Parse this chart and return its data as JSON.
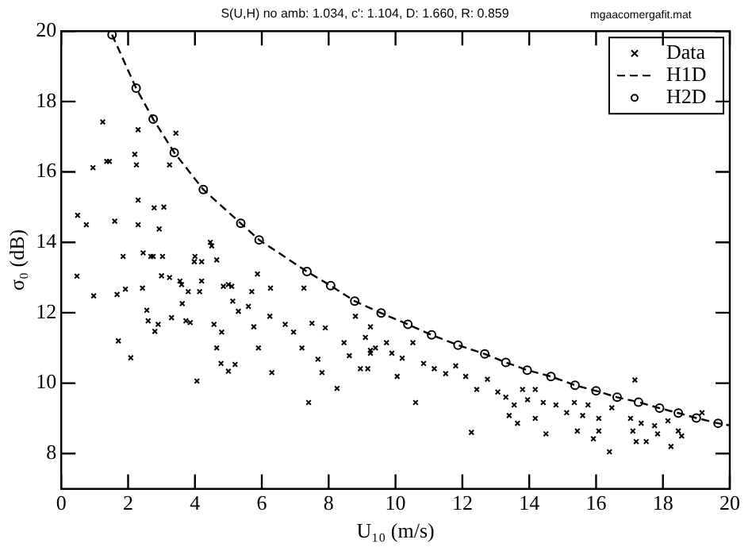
{
  "chart_data": {
    "type": "scatter",
    "title": "S(U,H) no amb: 1.034, c': 1.104, D: 1.660, R: 0.859",
    "annotations": [
      "mgaacomergafit.mat"
    ],
    "xlabel": "U₁₀ (m/s)",
    "ylabel": "σ₀ (dB)",
    "xlim": [
      0,
      20
    ],
    "ylim": [
      7,
      20
    ],
    "xticks": [
      0,
      2,
      4,
      6,
      8,
      10,
      12,
      14,
      16,
      18,
      20
    ],
    "yticks": [
      8,
      10,
      12,
      14,
      16,
      18,
      20
    ],
    "grid": false,
    "legend": "top right",
    "series": [
      {
        "name": "Data",
        "type": "scatter",
        "marker": "cross",
        "color": "#000000",
        "x": [
          1.24,
          0.95,
          1.36,
          1.44,
          2.3,
          2.2,
          2.25,
          3.43,
          3.24,
          0.49,
          0.75,
          1.6,
          2.3,
          2.3,
          2.78,
          3.07,
          2.93,
          1.85,
          2.45,
          2.68,
          2.75,
          3.03,
          4.46,
          4.5,
          4.65,
          4.0,
          4.2,
          3.98,
          5.87,
          3.0,
          3.24,
          0.47,
          3.55,
          3.6,
          3.8,
          4.2,
          4.85,
          5.0,
          5.1,
          5.7,
          6.26,
          7.26,
          0.97,
          1.67,
          1.92,
          1.71,
          2.08,
          2.43,
          2.56,
          2.6,
          2.8,
          2.9,
          3.3,
          3.62,
          3.73,
          3.86,
          4.14,
          4.06,
          4.57,
          4.65,
          4.78,
          5.0,
          5.2,
          4.8,
          5.13,
          5.3,
          5.6,
          5.76,
          5.9,
          6.3,
          6.24,
          6.95,
          7.2,
          7.5,
          7.68,
          7.9,
          6.7,
          7.4,
          8.25,
          7.8,
          8.46,
          8.62,
          8.95,
          9.25,
          9.1,
          9.4,
          8.8,
          9.25,
          9.17,
          9.25,
          9.73,
          9.89,
          10.2,
          10.52,
          10.84,
          11.16,
          11.5,
          11.8,
          12.1,
          10.6,
          12.27,
          10.05,
          12.43,
          12.75,
          13.06,
          13.3,
          13.55,
          13.8,
          13.95,
          13.4,
          13.65,
          14.18,
          14.42,
          14.18,
          14.5,
          14.8,
          15.12,
          15.35,
          15.6,
          15.44,
          15.76,
          16.08,
          15.92,
          16.08,
          16.4,
          16.47,
          17.03,
          17.1,
          17.35,
          17.5,
          17.2,
          17.75,
          17.84,
          18.15,
          18.24,
          17.16,
          18.46,
          18.56,
          19.17
        ],
        "values": [
          17.42,
          16.12,
          16.3,
          16.3,
          17.2,
          16.5,
          16.2,
          17.1,
          16.2,
          14.77,
          14.5,
          14.6,
          15.2,
          14.5,
          14.98,
          15.0,
          14.38,
          13.6,
          13.7,
          13.6,
          13.6,
          13.6,
          14.0,
          13.9,
          13.5,
          13.6,
          13.45,
          13.45,
          13.1,
          13.05,
          13.0,
          13.04,
          12.9,
          12.8,
          12.6,
          12.9,
          12.75,
          12.8,
          12.75,
          12.6,
          12.7,
          12.7,
          12.48,
          12.52,
          12.67,
          11.2,
          10.72,
          12.7,
          12.07,
          11.77,
          11.47,
          11.67,
          11.86,
          12.26,
          11.77,
          11.72,
          12.6,
          10.06,
          11.67,
          11.0,
          10.56,
          10.34,
          10.53,
          11.45,
          12.33,
          12.04,
          12.18,
          11.6,
          11.0,
          10.3,
          11.9,
          11.45,
          11.0,
          11.7,
          10.68,
          11.57,
          11.67,
          9.45,
          9.85,
          10.3,
          11.15,
          10.78,
          10.41,
          10.85,
          11.3,
          11.0,
          11.9,
          11.6,
          10.41,
          10.93,
          11.15,
          10.85,
          10.71,
          11.15,
          10.56,
          10.41,
          10.27,
          10.49,
          10.19,
          9.45,
          8.6,
          10.19,
          9.82,
          10.11,
          9.75,
          9.6,
          9.38,
          9.82,
          9.53,
          9.08,
          8.86,
          9.82,
          9.45,
          9.0,
          8.56,
          9.38,
          9.16,
          9.45,
          9.08,
          8.64,
          9.38,
          9.0,
          8.42,
          8.64,
          8.05,
          9.3,
          9.0,
          8.64,
          8.86,
          8.34,
          8.34,
          8.79,
          8.56,
          8.93,
          8.2,
          10.09,
          8.64,
          8.5,
          9.16
        ]
      },
      {
        "name": "H1D",
        "type": "line",
        "marker": "none",
        "line_style": "dashed",
        "color": "#000000",
        "x": [
          1.52,
          2.24,
          2.75,
          3.38,
          4.25,
          5.37,
          5.92,
          7.35,
          8.06,
          8.78,
          9.57,
          10.37,
          11.08,
          11.87,
          12.67,
          13.3,
          13.94,
          14.65,
          15.37,
          16.0,
          16.63,
          17.27,
          17.9,
          18.46,
          19.0,
          19.65,
          20
        ],
        "values": [
          19.9,
          18.38,
          17.5,
          16.55,
          15.5,
          14.54,
          14.07,
          13.17,
          12.77,
          12.33,
          11.99,
          11.67,
          11.37,
          11.08,
          10.83,
          10.59,
          10.37,
          10.19,
          9.94,
          9.78,
          9.6,
          9.46,
          9.29,
          9.15,
          9.01,
          8.86,
          8.8
        ]
      },
      {
        "name": "H2D",
        "type": "scatter",
        "marker": "circle",
        "color": "#000000",
        "x": [
          1.52,
          2.24,
          2.75,
          3.38,
          4.25,
          5.37,
          5.92,
          7.35,
          8.06,
          8.78,
          9.57,
          10.37,
          11.08,
          11.87,
          12.67,
          13.3,
          13.94,
          14.65,
          15.37,
          16.0,
          16.63,
          17.27,
          17.9,
          18.46,
          19.0,
          19.65
        ],
        "values": [
          19.9,
          18.38,
          17.5,
          16.55,
          15.5,
          14.54,
          14.07,
          13.17,
          12.77,
          12.33,
          11.99,
          11.67,
          11.37,
          11.08,
          10.83,
          10.59,
          10.37,
          10.19,
          9.94,
          9.78,
          9.6,
          9.46,
          9.29,
          9.15,
          9.01,
          8.86
        ]
      }
    ]
  }
}
